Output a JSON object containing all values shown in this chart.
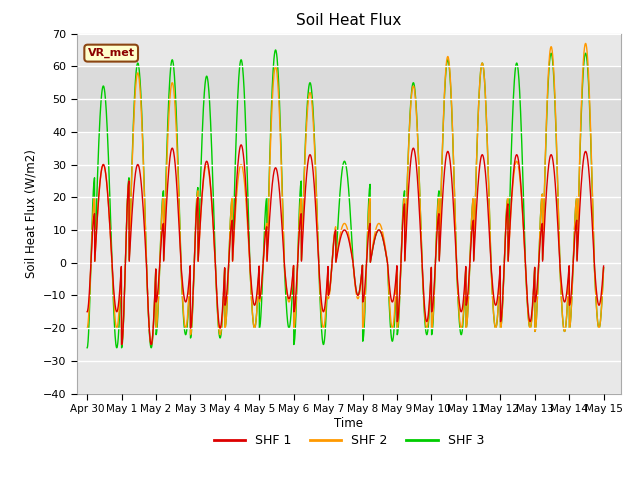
{
  "title": "Soil Heat Flux",
  "ylabel": "Soil Heat Flux (W/m2)",
  "xlabel": "Time",
  "ylim": [
    -40,
    70
  ],
  "xlim": [
    -0.3,
    15.5
  ],
  "yticks": [
    -40,
    -30,
    -20,
    -10,
    0,
    10,
    20,
    30,
    40,
    50,
    60,
    70
  ],
  "xtick_labels": [
    "Apr 30",
    "May 1",
    "May 2",
    "May 3",
    "May 4",
    "May 5",
    "May 6",
    "May 7",
    "May 8",
    "May 9",
    "May 10",
    "May 11",
    "May 12",
    "May 13",
    "May 14",
    "May 15"
  ],
  "xtick_positions": [
    0,
    1,
    2,
    3,
    4,
    5,
    6,
    7,
    8,
    9,
    10,
    11,
    12,
    13,
    14,
    15
  ],
  "colors": {
    "SHF1": "#dd0000",
    "SHF2": "#ff9900",
    "SHF3": "#00cc00"
  },
  "legend_labels": [
    "SHF 1",
    "SHF 2",
    "SHF 3"
  ],
  "annotation_text": "VR_met",
  "plot_bg_color": "#e8e8e8",
  "n_days": 15,
  "points_per_day": 144,
  "shf1_day_amps": [
    30,
    30,
    35,
    31,
    36,
    29,
    33,
    10,
    10,
    35,
    34,
    33,
    33,
    33,
    34
  ],
  "shf1_night_amps": [
    -15,
    -25,
    -12,
    -20,
    -13,
    -11,
    -15,
    -10,
    -12,
    -18,
    -15,
    -13,
    -18,
    -12,
    -13
  ],
  "shf2_day_amps": [
    30,
    58,
    55,
    30,
    30,
    60,
    52,
    12,
    12,
    54,
    63,
    61,
    31,
    66,
    67
  ],
  "shf2_night_amps": [
    -20,
    -25,
    -20,
    -22,
    -20,
    -12,
    -20,
    -11,
    -20,
    -20,
    -20,
    -20,
    -20,
    -21,
    -20
  ],
  "shf3_day_amps": [
    54,
    61,
    62,
    57,
    62,
    65,
    55,
    31,
    10,
    55,
    62,
    61,
    61,
    64,
    64
  ],
  "shf3_night_amps": [
    -26,
    -26,
    -22,
    -23,
    -20,
    -20,
    -25,
    -10,
    -24,
    -22,
    -22,
    -20,
    -20,
    -21,
    -20
  ],
  "day_start": 0.22,
  "day_end": 0.72
}
